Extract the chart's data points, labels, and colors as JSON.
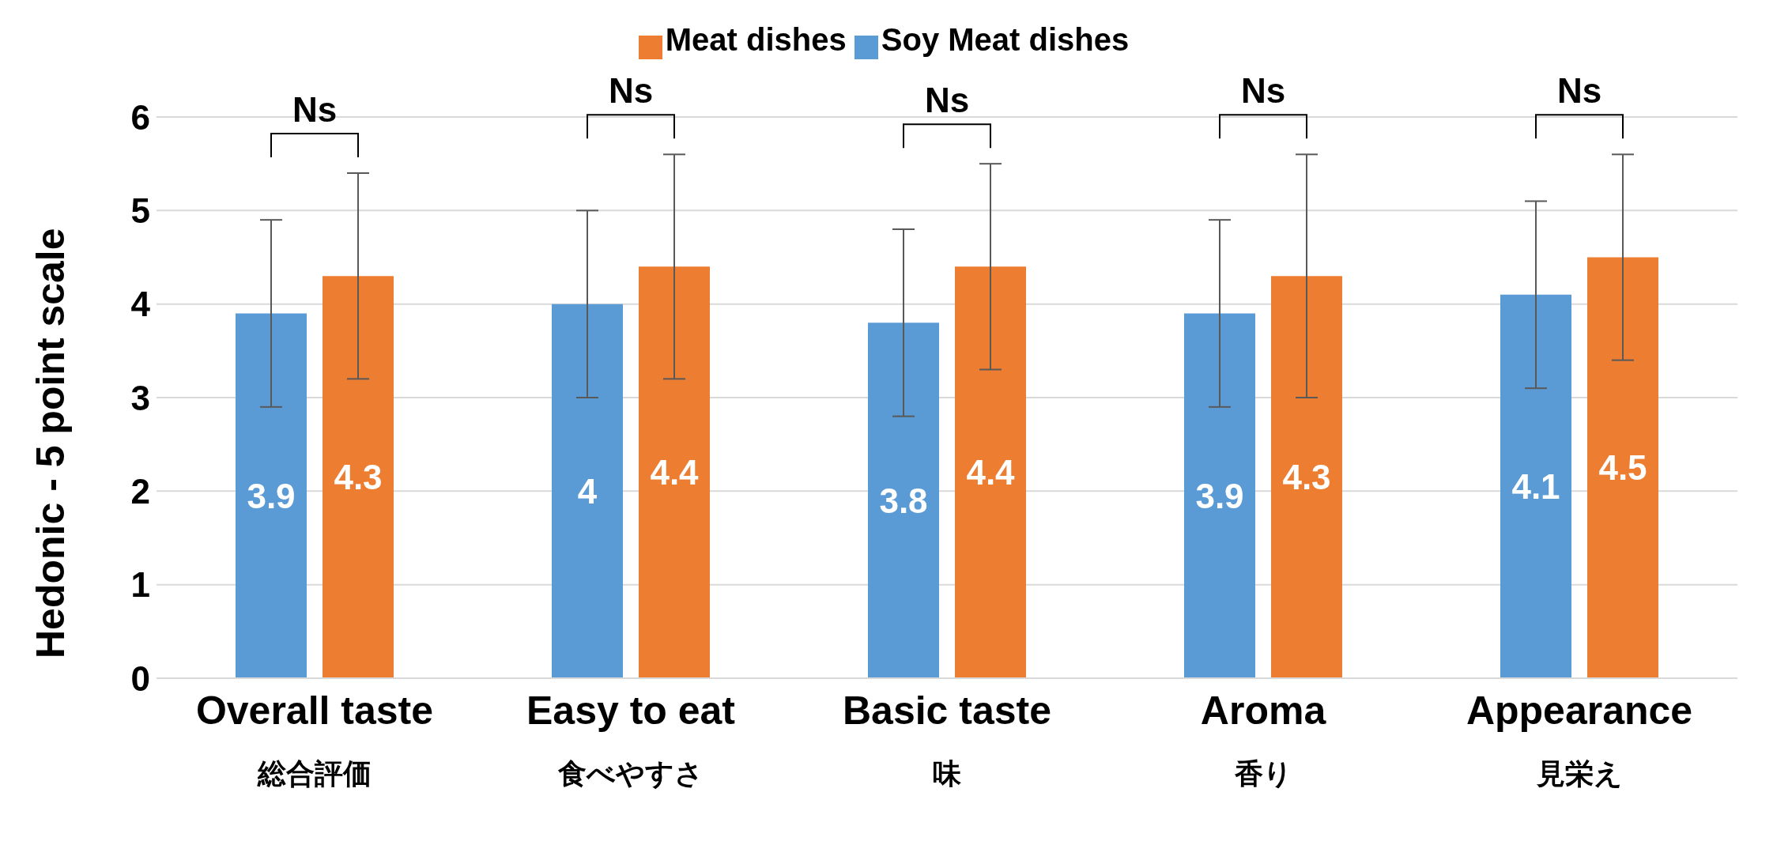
{
  "chart_data": {
    "type": "bar",
    "ylabel": "Hedonic - 5 point scale",
    "categories": [
      "Overall taste\n総合評価",
      "Easy to eat\n食べやすさ",
      "Basic taste\n味",
      "Aroma\n香り",
      "Appearance\n見栄え"
    ],
    "series": [
      {
        "name": "Soy Meat dishes",
        "color": "#5b9bd5",
        "values": [
          3.9,
          4,
          3.8,
          3.9,
          4.1
        ],
        "errors": [
          1,
          1,
          1,
          1,
          1
        ]
      },
      {
        "name": "Meat dishes",
        "color": "#ed7d31",
        "values": [
          4.3,
          4.4,
          4.4,
          4.3,
          4.5
        ],
        "errors": [
          1.1,
          1.2,
          1.1,
          1.3,
          1.1
        ]
      }
    ],
    "ylim": [
      0,
      6
    ],
    "yticks": [
      0,
      1,
      2,
      3,
      4,
      5,
      6
    ],
    "grid": "y",
    "legend": "top",
    "data_labels": true,
    "annotations": [
      "Ns",
      "Ns",
      "Ns",
      "Ns",
      "Ns"
    ]
  }
}
